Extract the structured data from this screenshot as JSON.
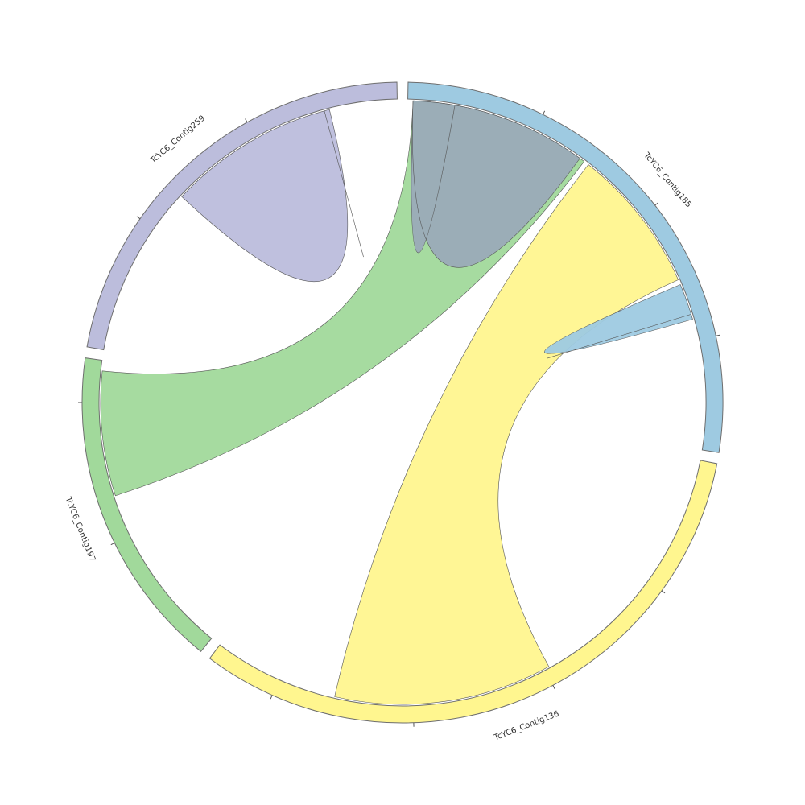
{
  "chart_data": {
    "type": "chord",
    "segments": [
      {
        "name": "TcYC6_Contig185",
        "color": "#9ecae1",
        "start_angle": 1,
        "end_angle": 99
      },
      {
        "name": "TcYC6_Contig136",
        "color": "#fff68f",
        "start_angle": 101,
        "end_angle": 217
      },
      {
        "name": "TcYC6_Contig197",
        "color": "#a1d99b",
        "start_angle": 219,
        "end_angle": 278
      },
      {
        "name": "TcYC6_Contig259",
        "color": "#bcbddc",
        "start_angle": 280,
        "end_angle": 359
      }
    ],
    "ribbons": [
      {
        "from_segment": "TcYC6_Contig197",
        "from": [
          252,
          276
        ],
        "to_segment": "TcYC6_Contig185",
        "to": [
          2,
          37
        ],
        "color": "#a1d99b"
      },
      {
        "from_segment": "TcYC6_Contig136",
        "from": [
          151,
          193
        ],
        "to_segment": "TcYC6_Contig185",
        "to": [
          38,
          66
        ],
        "color": "#fff68f"
      },
      {
        "from_segment": "TcYC6_Contig259",
        "from": [
          313,
          345
        ],
        "to_segment": "TcYC6_Contig259",
        "to": [
          345,
          346
        ],
        "color": "#bcbddc"
      },
      {
        "from_segment": "TcYC6_Contig185",
        "from": [
          2,
          36
        ],
        "to_segment": "TcYC6_Contig185",
        "to": [
          2,
          10
        ],
        "color": "#9aabb8"
      },
      {
        "from_segment": "TcYC6_Contig185",
        "from": [
          67,
          73
        ],
        "to_segment": "TcYC6_Contig185",
        "to": [
          73,
          74
        ],
        "color": "#9ecae1"
      }
    ]
  }
}
